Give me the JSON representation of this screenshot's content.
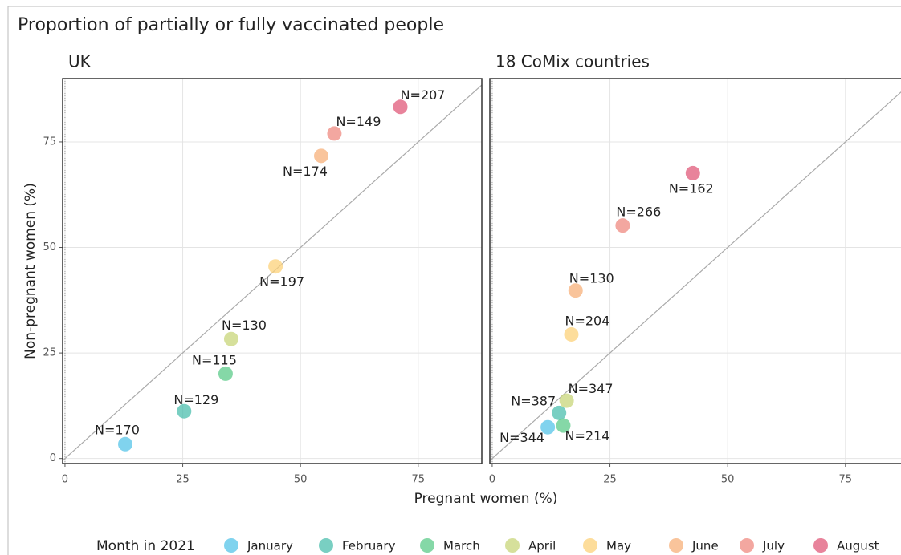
{
  "chart_data": {
    "type": "scatter",
    "title": "Proportion of partially or fully vaccinated people",
    "x_label": "Pregnant women (%)",
    "y_label": "Non-pregnant women (%)",
    "legend_title": "Month in 2021",
    "xlim": [
      -0.5,
      88.5
    ],
    "ylim": [
      -1.2,
      90
    ],
    "xticks": [
      0,
      25,
      50,
      75
    ],
    "yticks": [
      0,
      25,
      50,
      75
    ],
    "grid": true,
    "series": [
      {
        "name": "January",
        "color": "#56c4e8"
      },
      {
        "name": "February",
        "color": "#4cbfae"
      },
      {
        "name": "March",
        "color": "#5ccb8a"
      },
      {
        "name": "April",
        "color": "#c8d67a"
      },
      {
        "name": "May",
        "color": "#fcd27a"
      },
      {
        "name": "June",
        "color": "#f7b07a"
      },
      {
        "name": "July",
        "color": "#ef8a80"
      },
      {
        "name": "August",
        "color": "#e05a7a"
      }
    ],
    "panels": [
      {
        "title": "UK",
        "x": [
          12.8,
          25.3,
          34.1,
          35.3,
          44.7,
          54.4,
          57.2,
          71.2
        ],
        "y": [
          3.4,
          11.2,
          20.1,
          28.3,
          45.5,
          71.7,
          77.0,
          83.3
        ],
        "labels": [
          "N=170",
          "N=129",
          "N=115",
          "N=130",
          "N=197",
          "N=174",
          "N=149",
          "N=207"
        ]
      },
      {
        "title": "18 CoMix countries",
        "x": [
          11.8,
          14.2,
          15.1,
          15.8,
          16.8,
          17.7,
          27.7,
          42.6
        ],
        "y": [
          7.4,
          10.8,
          7.8,
          13.7,
          29.4,
          39.8,
          55.2,
          67.6
        ],
        "labels": [
          "N=344",
          "N=387",
          "N=214",
          "N=347",
          "N=204",
          "N=130",
          "N=266",
          "N=162"
        ]
      }
    ]
  }
}
